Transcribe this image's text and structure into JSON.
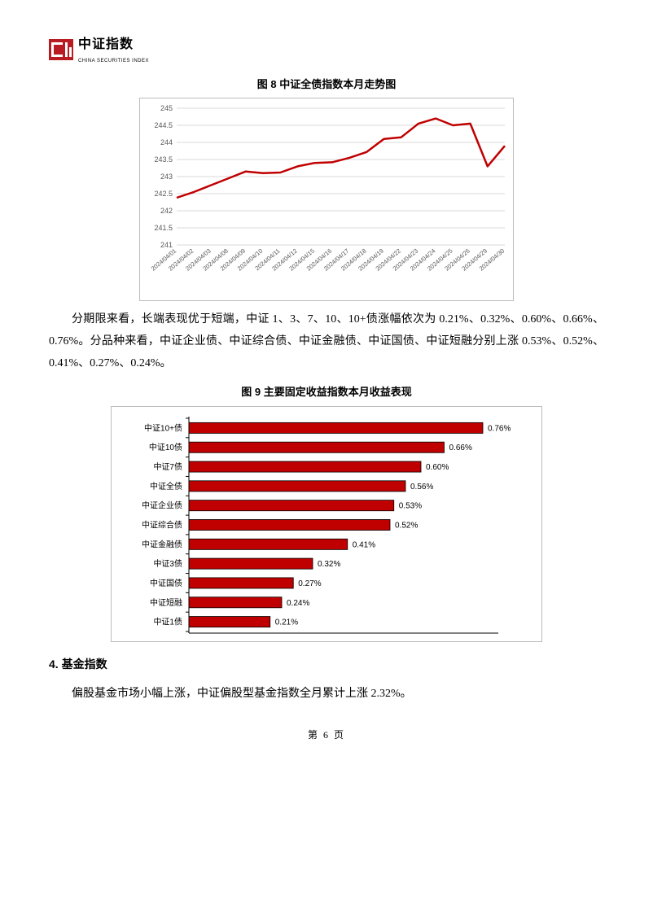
{
  "logo": {
    "cn": "中证指数",
    "en": "CHINA SECURITIES INDEX",
    "brand_color": "#b81c22"
  },
  "fig8": {
    "title": "图 8  中证全债指数本月走势图",
    "type": "line",
    "line_color": "#c00000",
    "line_width": 2.5,
    "background_color": "#ffffff",
    "grid_color": "#d9d9d9",
    "axis_color": "#808080",
    "ylim": [
      241,
      245
    ],
    "ytick_step": 0.5,
    "yticks": [
      "241",
      "241.5",
      "242",
      "242.5",
      "243",
      "243.5",
      "244",
      "244.5",
      "245"
    ],
    "tick_fontsize": 9,
    "tick_color": "#595959",
    "xlabels": [
      "2024/04/01",
      "2024/04/02",
      "2024/04/03",
      "2024/04/08",
      "2024/04/09",
      "2024/04/10",
      "2024/04/11",
      "2024/04/12",
      "2024/04/15",
      "2024/04/16",
      "2024/04/17",
      "2024/04/18",
      "2024/04/19",
      "2024/04/22",
      "2024/04/23",
      "2024/04/24",
      "2024/04/25",
      "2024/04/26",
      "2024/04/29",
      "2024/04/30"
    ],
    "values": [
      242.38,
      242.55,
      242.75,
      242.95,
      243.15,
      243.1,
      243.12,
      243.3,
      243.4,
      243.42,
      243.55,
      243.72,
      244.1,
      244.15,
      244.55,
      244.7,
      244.5,
      244.55,
      243.3,
      243.9
    ]
  },
  "para1": "分期限来看，长端表现优于短端，中证 1、3、7、10、10+债涨幅依次为 0.21%、0.32%、0.60%、0.66%、0.76%。分品种来看，中证企业债、中证综合债、中证金融债、中证国债、中证短融分别上涨 0.53%、0.52%、0.41%、0.27%、0.24%。",
  "fig9": {
    "title": "图 9  主要固定收益指数本月收益表现",
    "type": "bar-horizontal",
    "bar_color": "#c00000",
    "border_color": "#000000",
    "background_color": "#ffffff",
    "axis_color": "#000000",
    "label_fontsize": 10,
    "value_fontsize": 10,
    "categories": [
      "中证10+债",
      "中证10债",
      "中证7债",
      "中证全债",
      "中证企业债",
      "中证综合债",
      "中证金融债",
      "中证3债",
      "中证国债",
      "中证短融",
      "中证1债"
    ],
    "values": [
      0.76,
      0.66,
      0.6,
      0.56,
      0.53,
      0.52,
      0.41,
      0.32,
      0.27,
      0.24,
      0.21
    ],
    "value_labels": [
      "0.76%",
      "0.66%",
      "0.60%",
      "0.56%",
      "0.53%",
      "0.52%",
      "0.41%",
      "0.32%",
      "0.27%",
      "0.24%",
      "0.21%"
    ],
    "xmax": 0.8
  },
  "section4": {
    "head": "4. 基金指数"
  },
  "para2": "偏股基金市场小幅上涨，中证偏股型基金指数全月累计上涨 2.32%。",
  "page_number": "第 6 页"
}
